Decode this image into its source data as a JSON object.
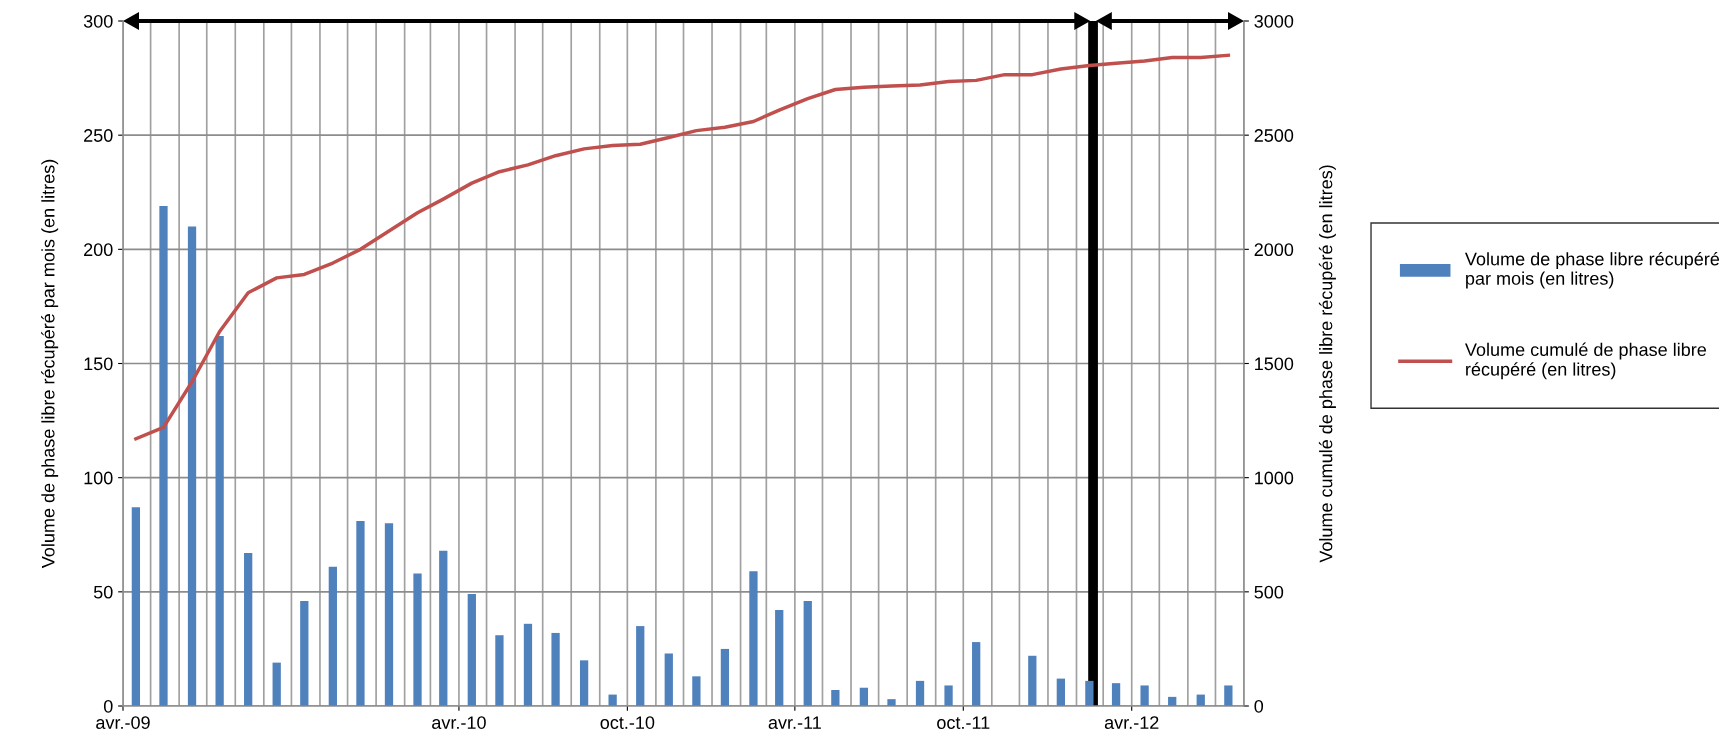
{
  "chart_data": {
    "type": "bar",
    "ylabel": "Volume de phase libre récupéré par mois (en litres)",
    "y2label": "Volume cumulé de phase libre récupéré (en litres)",
    "x": [
      "2009-04-15",
      "2009-05-15",
      "2009-06-15",
      "2009-07-15",
      "2009-08-15",
      "2009-09-15",
      "2009-10-15",
      "2009-11-15",
      "2009-12-15",
      "2010-01-15",
      "2010-02-15",
      "2010-03-15",
      "2010-04-15",
      "2010-05-15",
      "2010-06-15",
      "2010-07-15",
      "2010-08-15",
      "2010-09-15",
      "2010-10-15",
      "2010-11-15",
      "2010-12-15",
      "2011-01-15",
      "2011-02-15",
      "2011-03-15",
      "2011-04-15",
      "2011-05-15",
      "2011-06-15",
      "2011-07-15",
      "2011-08-15",
      "2011-09-15",
      "2011-10-15",
      "2011-11-15",
      "2011-12-15",
      "2012-01-15",
      "2012-02-15",
      "2012-03-15",
      "2012-04-15",
      "2012-05-15",
      "2012-06-15",
      "2012-07-15"
    ],
    "series": [
      {
        "name": "Volume de phase libre récupéré par mois (en litres)",
        "color": "#4f81bd",
        "values": [
          87,
          219,
          210,
          162,
          67,
          19,
          46,
          61,
          81,
          80,
          58,
          68,
          49,
          31,
          36,
          32,
          20,
          5,
          35,
          23,
          13,
          25,
          59,
          42,
          46,
          7,
          8,
          3,
          11,
          9,
          28,
          0,
          22,
          12,
          11,
          10,
          9,
          4,
          5,
          9
        ]
      },
      {
        "name": "Volume cumulé de phase libre récupéré (en litres)",
        "type": "line",
        "axis": "y2",
        "color": "#c0504d",
        "values": [
          1170,
          1220,
          1420,
          1640,
          1810,
          1875,
          1890,
          1940,
          2000,
          2080,
          2160,
          2220,
          2290,
          2340,
          2370,
          2410,
          2440,
          2455,
          2460,
          2490,
          2520,
          2535,
          2560,
          2610,
          2660,
          2700,
          2710,
          2715,
          2720,
          2735,
          2740,
          2765,
          2765,
          2790,
          2805,
          2815,
          2825,
          2840,
          2840,
          2850
        ]
      }
    ],
    "xlim": [
      "2009-04-01",
      "2012-08-01"
    ],
    "xticks": [
      {
        "value": "2009-04-01",
        "label": "avr.-09"
      },
      {
        "value": "2009-05-01",
        "label": null
      },
      {
        "value": "2009-06-01",
        "label": null
      },
      {
        "value": "2009-07-01",
        "label": null
      },
      {
        "value": "2009-08-01",
        "label": null
      },
      {
        "value": "2009-09-01",
        "label": null
      },
      {
        "value": "2009-10-01",
        "label": null
      },
      {
        "value": "2009-11-01",
        "label": null
      },
      {
        "value": "2009-12-01",
        "label": null
      },
      {
        "value": "2010-01-01",
        "label": null
      },
      {
        "value": "2010-02-01",
        "label": null
      },
      {
        "value": "2010-03-01",
        "label": null
      },
      {
        "value": "2010-04-01",
        "label": "avr.-10"
      },
      {
        "value": "2010-05-01",
        "label": null
      },
      {
        "value": "2010-06-01",
        "label": null
      },
      {
        "value": "2010-07-01",
        "label": null
      },
      {
        "value": "2010-08-01",
        "label": null
      },
      {
        "value": "2010-09-01",
        "label": null
      },
      {
        "value": "2010-10-01",
        "label": "oct.-10"
      },
      {
        "value": "2010-11-01",
        "label": null
      },
      {
        "value": "2010-12-01",
        "label": null
      },
      {
        "value": "2011-01-01",
        "label": null
      },
      {
        "value": "2011-02-01",
        "label": null
      },
      {
        "value": "2011-03-01",
        "label": null
      },
      {
        "value": "2011-04-01",
        "label": "avr.-11"
      },
      {
        "value": "2011-05-01",
        "label": null
      },
      {
        "value": "2011-06-01",
        "label": null
      },
      {
        "value": "2011-07-01",
        "label": null
      },
      {
        "value": "2011-08-01",
        "label": null
      },
      {
        "value": "2011-09-01",
        "label": null
      },
      {
        "value": "2011-10-01",
        "label": "oct.-11"
      },
      {
        "value": "2011-11-01",
        "label": null
      },
      {
        "value": "2011-12-01",
        "label": null
      },
      {
        "value": "2012-01-01",
        "label": null
      },
      {
        "value": "2012-02-01",
        "label": null
      },
      {
        "value": "2012-03-01",
        "label": null
      },
      {
        "value": "2012-04-01",
        "label": "avr.-12"
      },
      {
        "value": "2012-05-01",
        "label": null
      },
      {
        "value": "2012-06-01",
        "label": null
      },
      {
        "value": "2012-07-01",
        "label": null
      },
      {
        "value": "2012-08-01",
        "label": null
      }
    ],
    "ylim": [
      0,
      300
    ],
    "yticks": [
      0,
      50,
      100,
      150,
      200,
      250,
      300
    ],
    "y2lim": [
      0,
      3000
    ],
    "y2ticks": [
      0,
      500,
      1000,
      1500,
      2000,
      2500,
      3000
    ],
    "ref_lines": [
      {
        "axis": "x",
        "value": "2012-02-19",
        "color": "#000000"
      }
    ],
    "grid": true,
    "legend": "right"
  }
}
